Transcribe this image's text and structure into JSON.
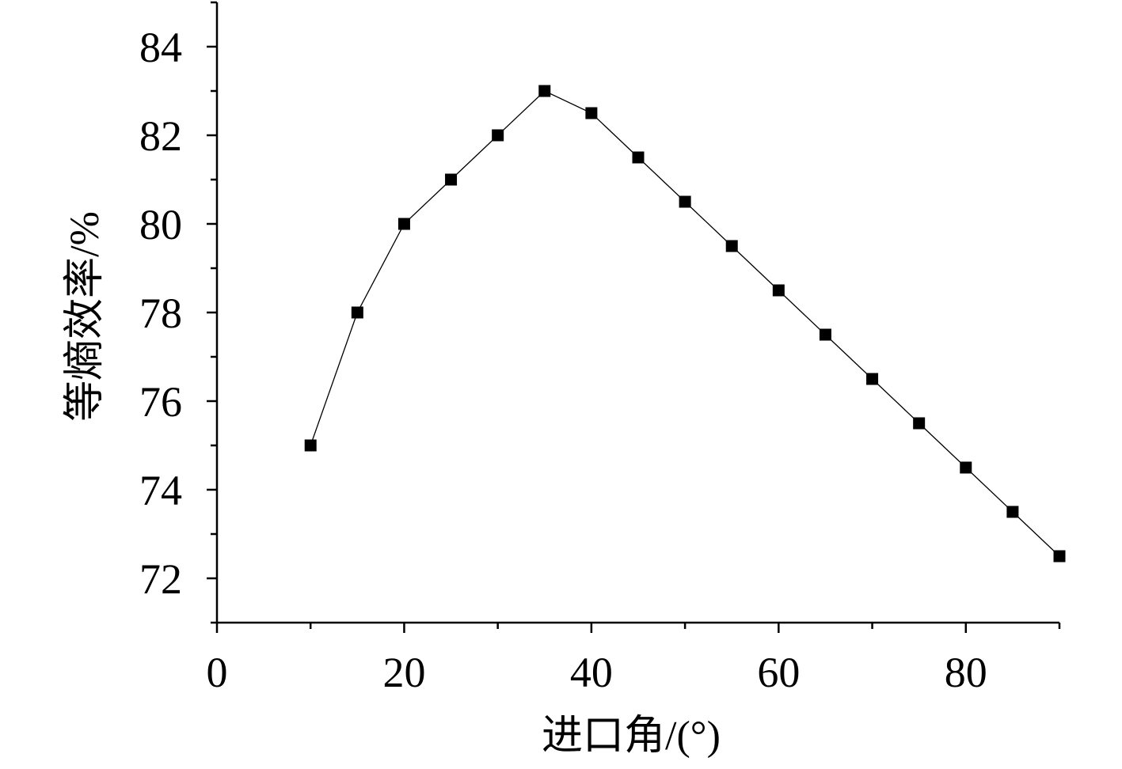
{
  "chart_data": {
    "type": "line",
    "title": "",
    "xlabel": "进口角/(°)",
    "ylabel": "等熵效率/%",
    "xlim": [
      0,
      90
    ],
    "ylim": [
      71,
      85
    ],
    "x_ticks": [
      0,
      20,
      40,
      60,
      80
    ],
    "x_tick_labels": [
      "0",
      "20",
      "40",
      "60",
      "80"
    ],
    "y_ticks": [
      72,
      74,
      76,
      78,
      80,
      82,
      84
    ],
    "y_tick_labels": [
      "72",
      "74",
      "76",
      "78",
      "80",
      "82",
      "84"
    ],
    "grid": false,
    "legend": "none",
    "marker": "filled-square",
    "series": [
      {
        "x": [
          10,
          15,
          20,
          25,
          30,
          35,
          40,
          45,
          50,
          55,
          60,
          65,
          70,
          75,
          80,
          85,
          90
        ],
        "y": [
          75,
          78,
          80,
          81,
          82,
          83,
          82.5,
          81.5,
          80.5,
          79.5,
          78.5,
          77.5,
          76.5,
          75.5,
          74.5,
          73.5,
          72.5
        ],
        "color": "#000000"
      }
    ]
  }
}
